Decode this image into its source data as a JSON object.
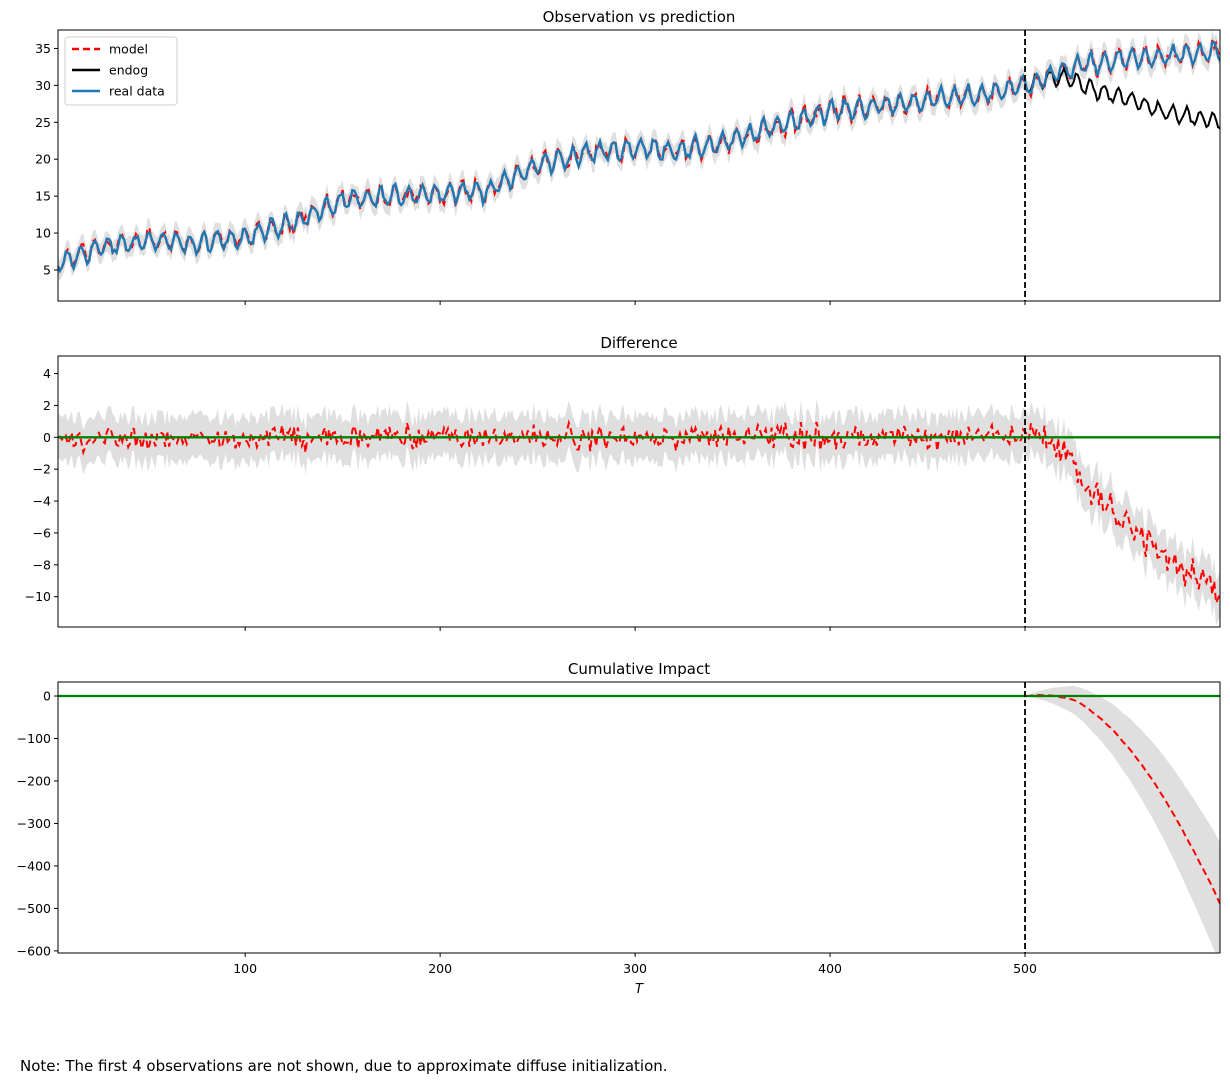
{
  "figure": {
    "note": "Note: The first 4 observations are not shown, due to approximate diffuse initialization."
  },
  "colors": {
    "model": "#ff0000",
    "endog": "#000000",
    "real_data": "#1f77b4",
    "zero_line": "#008000",
    "interval": "#dddddd",
    "intervention": "#000000"
  },
  "chart_data": [
    {
      "type": "line",
      "title": "Observation vs prediction",
      "xlabel": "",
      "ylabel": "",
      "xlim": [
        4,
        600
      ],
      "ylim": [
        0.8,
        37.5
      ],
      "yticks": [
        5,
        10,
        15,
        20,
        25,
        30,
        35
      ],
      "intervention_x": 500,
      "grid": false,
      "legend": {
        "placement": "top-left",
        "entries": [
          "model",
          "endog",
          "real data"
        ]
      },
      "series": [
        {
          "name": "model",
          "style": "dashed",
          "description": "one-step-ahead prediction, tracks real data with weekly seasonality",
          "x": [
            4,
            25,
            50,
            75,
            100,
            125,
            150,
            175,
            200,
            225,
            250,
            275,
            300,
            325,
            350,
            375,
            400,
            425,
            450,
            475,
            500,
            525,
            550,
            575,
            600
          ],
          "values": [
            5.8,
            8.0,
            9.0,
            8.5,
            9.5,
            11.5,
            14.3,
            15.0,
            15.5,
            15.8,
            19.2,
            20.8,
            21.5,
            21.2,
            22.5,
            24.8,
            26.5,
            27.2,
            28.0,
            28.6,
            30.0,
            32.5,
            33.5,
            34.0,
            34.5
          ]
        },
        {
          "name": "endog",
          "description": "observed series; after t=500 shows the intervention-lowered values",
          "x": [
            500,
            510,
            520,
            530,
            540,
            550,
            560,
            570,
            580,
            590,
            600
          ],
          "values": [
            30.0,
            31.0,
            31.0,
            30.0,
            29.0,
            28.5,
            27.5,
            26.5,
            26.0,
            25.5,
            25.0
          ]
        },
        {
          "name": "real data",
          "description": "counterfactual real data, trending upward with weekly seasonality",
          "x": [
            4,
            25,
            50,
            75,
            100,
            125,
            150,
            175,
            200,
            225,
            250,
            275,
            300,
            325,
            350,
            375,
            400,
            425,
            450,
            475,
            500,
            525,
            550,
            575,
            600
          ],
          "values": [
            5.8,
            8.0,
            9.0,
            8.5,
            9.5,
            11.5,
            14.3,
            15.0,
            15.5,
            15.8,
            19.2,
            20.8,
            21.5,
            21.2,
            22.5,
            24.8,
            26.5,
            27.2,
            28.0,
            28.6,
            30.0,
            32.5,
            33.5,
            34.0,
            34.5
          ]
        }
      ]
    },
    {
      "type": "line",
      "title": "Difference",
      "xlabel": "",
      "ylabel": "",
      "xlim": [
        4,
        600
      ],
      "ylim": [
        -11.9,
        5.1
      ],
      "yticks": [
        4,
        2,
        0,
        -2,
        -4,
        -6,
        -8,
        -10
      ],
      "intervention_x": 500,
      "grid": false,
      "series": [
        {
          "name": "",
          "style": "dashed",
          "description": "difference between endog and prediction; noise around 0 until t=500, then declining",
          "x": [
            4,
            100,
            200,
            300,
            400,
            500,
            525,
            550,
            575,
            600
          ],
          "values": [
            0,
            0,
            0,
            0,
            0,
            0,
            -2.0,
            -4.5,
            -7.0,
            -10.0
          ]
        },
        {
          "name": "",
          "style": "solid",
          "description": "zero reference line",
          "x": [
            4,
            600
          ],
          "values": [
            0,
            0
          ]
        }
      ]
    },
    {
      "type": "line",
      "title": "Cumulative Impact",
      "xlabel": "T",
      "ylabel": "",
      "xlim": [
        4,
        600
      ],
      "ylim": [
        -605,
        33
      ],
      "xticks": [
        100,
        200,
        300,
        400,
        500
      ],
      "yticks": [
        0,
        -100,
        -200,
        -300,
        -400,
        -500,
        -600
      ],
      "intervention_x": 500,
      "grid": false,
      "series": [
        {
          "name": "",
          "style": "dashed",
          "description": "cumulative sum of differences; flat at 0 until t=500, then curving down",
          "x": [
            4,
            500,
            510,
            520,
            530,
            540,
            550,
            560,
            570,
            580,
            590,
            600
          ],
          "values": [
            0,
            0,
            -5,
            -15,
            -30,
            -55,
            -90,
            -140,
            -200,
            -270,
            -360,
            -470
          ]
        },
        {
          "name": "",
          "style": "solid",
          "description": "zero reference line",
          "x": [
            4,
            600
          ],
          "values": [
            0,
            0
          ]
        }
      ]
    }
  ]
}
